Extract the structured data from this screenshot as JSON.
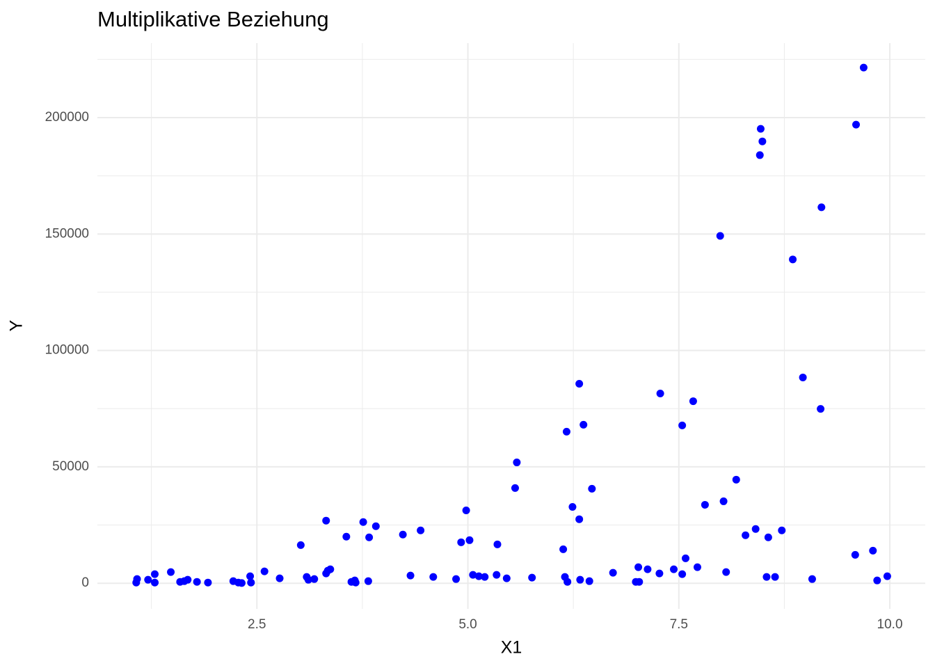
{
  "chart_data": {
    "type": "scatter",
    "title": "Multiplikative Beziehung",
    "x_label": "X1",
    "y_label": "Y",
    "color": "#0000ff",
    "grid": true,
    "xlim": [
      0.61,
      10.42
    ],
    "ylim": [
      -11000,
      232000
    ],
    "xticks": [
      2.5,
      {
        "value": 5,
        "label": "5.0"
      },
      7.5,
      {
        "value": 10,
        "label": "10.0"
      }
    ],
    "yticks": [
      0,
      50000,
      100000,
      150000,
      200000
    ],
    "x_minor_ticks": [
      1.25,
      3.75,
      6.25,
      8.75
    ],
    "y_minor_ticks": [
      25000,
      75000,
      125000,
      175000,
      225000
    ],
    "x": [
      1.07,
      1.08,
      1.21,
      1.29,
      1.29,
      1.48,
      1.59,
      1.64,
      1.68,
      1.79,
      1.92,
      2.22,
      2.28,
      2.32,
      2.42,
      2.43,
      2.59,
      2.77,
      3.02,
      3.09,
      3.11,
      3.18,
      3.32,
      3.32,
      3.34,
      3.37,
      3.56,
      3.62,
      3.66,
      3.67,
      3.76,
      3.82,
      3.83,
      3.91,
      4.23,
      4.32,
      4.44,
      4.59,
      4.86,
      4.92,
      4.98,
      5.02,
      5.06,
      5.13,
      5.2,
      5.34,
      5.35,
      5.46,
      5.56,
      5.58,
      5.76,
      6.13,
      6.15,
      6.17,
      6.18,
      6.24,
      6.32,
      6.32,
      6.33,
      6.37,
      6.44,
      6.47,
      6.72,
      6.99,
      7.02,
      7.03,
      7.13,
      7.28,
      7.27,
      7.44,
      7.54,
      7.54,
      7.58,
      7.67,
      7.72,
      7.81,
      7.99,
      8.03,
      8.06,
      8.18,
      8.29,
      8.41,
      8.46,
      8.47,
      8.49,
      8.54,
      8.56,
      8.64,
      8.72,
      8.85,
      8.97,
      9.08,
      9.18,
      9.19,
      9.59,
      9.6,
      9.69,
      9.8,
      9.85,
      9.97
    ],
    "values": [
      300,
      1800,
      1500,
      3900,
      300,
      4800,
      600,
      900,
      1500,
      600,
      300,
      900,
      300,
      100,
      3000,
      300,
      5100,
      2100,
      16400,
      2700,
      1500,
      1800,
      26900,
      4200,
      5400,
      6000,
      20000,
      600,
      1200,
      300,
      26300,
      900,
      19700,
      24500,
      20900,
      3300,
      22700,
      2700,
      1800,
      17600,
      31300,
      18500,
      3600,
      3000,
      2700,
      3600,
      16700,
      2100,
      40900,
      51900,
      2400,
      14600,
      2700,
      65100,
      600,
      32800,
      85700,
      27500,
      1500,
      68100,
      900,
      40600,
      4500,
      600,
      6900,
      600,
      6000,
      81500,
      4200,
      6000,
      67800,
      3900,
      10700,
      78200,
      6900,
      33700,
      149200,
      35200,
      4800,
      44500,
      20600,
      23300,
      183900,
      195200,
      189800,
      2700,
      19700,
      2700,
      22700,
      139100,
      88400,
      1800,
      74900,
      161500,
      12200,
      197000,
      221500,
      14000,
      1200,
      3000
    ]
  }
}
